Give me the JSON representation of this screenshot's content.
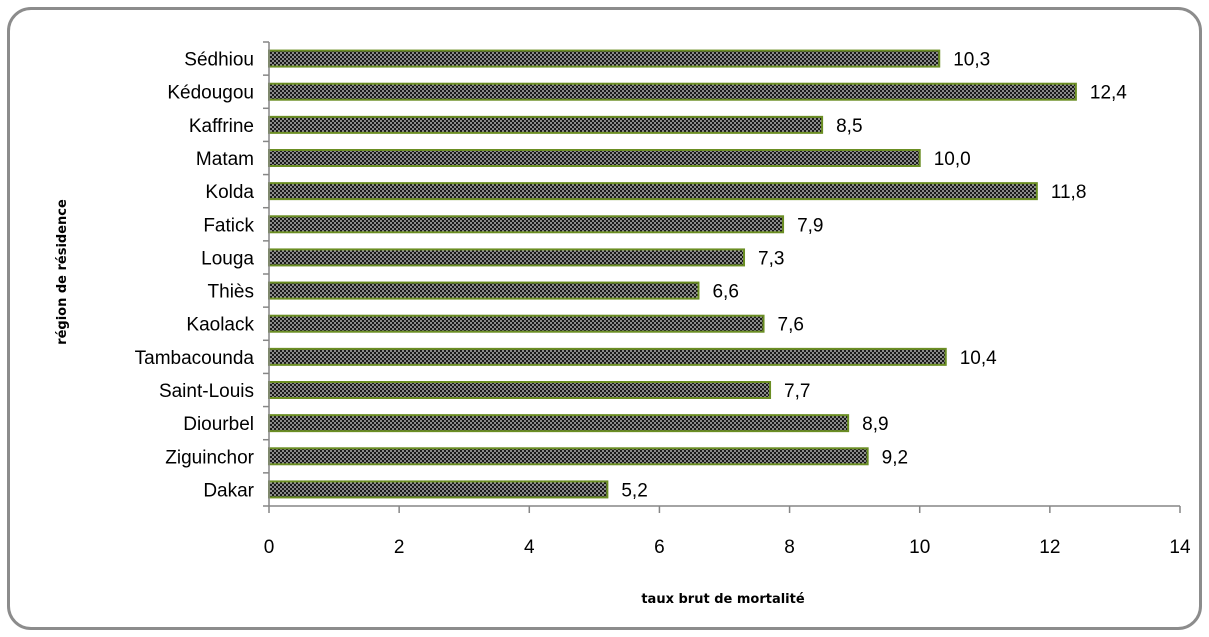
{
  "chart_data": {
    "type": "bar",
    "orientation": "horizontal",
    "categories": [
      "Dakar",
      "Ziguinchor",
      "Diourbel",
      "Saint-Louis",
      "Tambacounda",
      "Kaolack",
      "Thiès",
      "Louga",
      "Fatick",
      "Kolda",
      "Matam",
      "Kaffrine",
      "Kédougou",
      "Sédhiou"
    ],
    "values": [
      5.2,
      9.2,
      8.9,
      7.7,
      10.4,
      7.6,
      6.6,
      7.3,
      7.9,
      11.8,
      10.0,
      8.5,
      12.4,
      10.3
    ],
    "value_labels": [
      "5,2",
      "9,2",
      "8,9",
      "7,7",
      "10,4",
      "7,6",
      "6,6",
      "7,3",
      "7,9",
      "11,8",
      "10,0",
      "8,5",
      "12,4",
      "10,3"
    ],
    "xlabel": "taux brut de mortalité",
    "ylabel": "région de résidence",
    "xlim": [
      0,
      14
    ],
    "xticks": [
      0,
      2,
      4,
      6,
      8,
      10,
      12,
      14
    ],
    "grid": false,
    "legend": "none",
    "colors": {
      "bar_fill": "#1a1a1a",
      "bar_dots": "#d9d9d9",
      "bar_border": "#6b8e23",
      "axis": "#868686",
      "frame": "#8c8c8c"
    }
  }
}
